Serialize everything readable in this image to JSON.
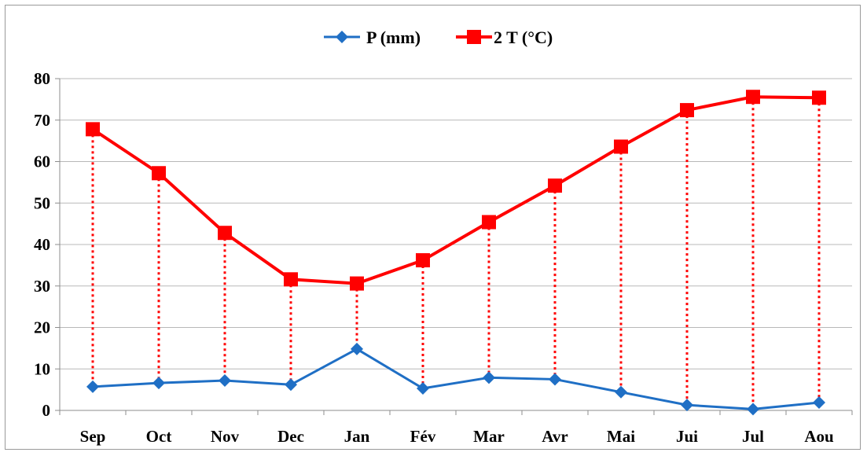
{
  "chart_data": {
    "type": "line",
    "title": "",
    "xlabel": "",
    "ylabel": "",
    "categories": [
      "Sep",
      "Oct",
      "Nov",
      "Dec",
      "Jan",
      "Fév",
      "Mar",
      "Avr",
      "Mai",
      "Jui",
      "Jul",
      "Aou"
    ],
    "yticks": [
      "0",
      "10",
      "20",
      "30",
      "40",
      "50",
      "60",
      "70",
      "80"
    ],
    "ylim": [
      0,
      80
    ],
    "grid": true,
    "legend_position": "top",
    "series": [
      {
        "name": "P (mm)",
        "color": "#1f6fc5",
        "marker": "diamond",
        "values": [
          5.7,
          6.6,
          7.2,
          6.2,
          14.8,
          5.3,
          7.9,
          7.5,
          4.4,
          1.3,
          0.3,
          1.9
        ]
      },
      {
        "name": "2 T (°C)",
        "color": "#ff0000",
        "marker": "square",
        "values": [
          67.8,
          57.2,
          42.8,
          31.6,
          30.6,
          36.2,
          45.4,
          54.2,
          63.6,
          72.4,
          75.6,
          75.4
        ]
      }
    ],
    "annotations": "dotted red vertical drop lines connect the two series at each month"
  }
}
